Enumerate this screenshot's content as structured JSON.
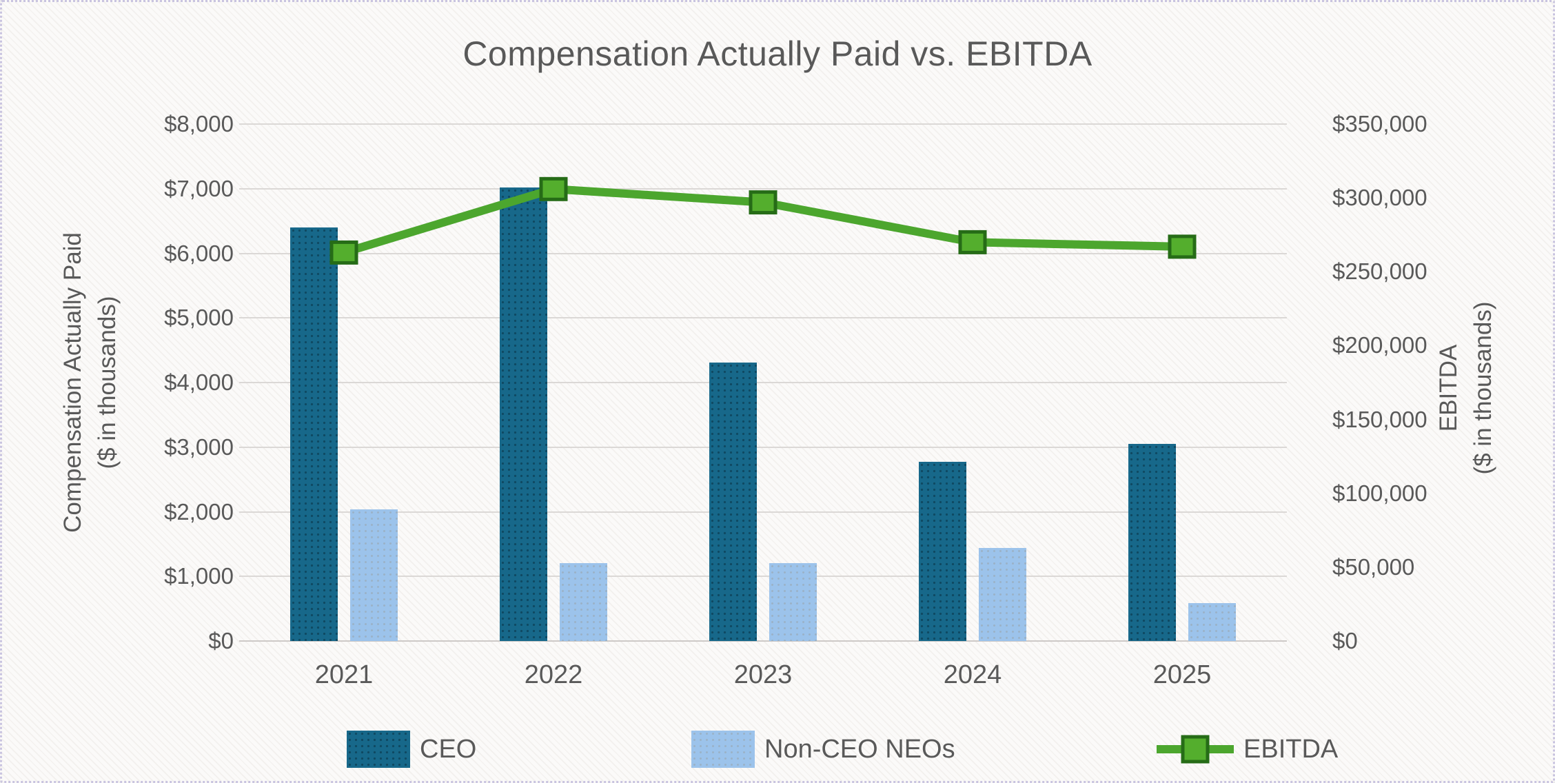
{
  "page": {
    "title": "Compensation Actually Paid vs. EBITDA"
  },
  "chart_data": {
    "type": "bar",
    "subtype": "clustered-bar-with-secondary-axis-line",
    "title": "Compensation Actually Paid vs. EBITDA",
    "categories": [
      "2021",
      "2022",
      "2023",
      "2024",
      "2025"
    ],
    "series": [
      {
        "name": "CEO",
        "type": "bar",
        "axis": "left",
        "color": "#17688a",
        "values": [
          6400,
          7020,
          4310,
          2770,
          3050
        ]
      },
      {
        "name": "Non-CEO NEOs",
        "type": "bar",
        "axis": "left",
        "color": "#9cc3eb",
        "values": [
          2040,
          1210,
          1210,
          1440,
          590
        ]
      },
      {
        "name": "EBITDA",
        "type": "line",
        "axis": "right",
        "color": "#4ca62e",
        "marker_fill": "#54ae2d",
        "marker_border": "#266c17",
        "values": [
          263000,
          306000,
          297000,
          270000,
          267000
        ]
      }
    ],
    "left_axis": {
      "title_line1": "Compensation Actually Paid",
      "title_line2": "($ in thousands)",
      "min": 0,
      "max": 8000,
      "step": 1000,
      "tick_labels": [
        "$0",
        "$1,000",
        "$2,000",
        "$3,000",
        "$4,000",
        "$5,000",
        "$6,000",
        "$7,000",
        "$8,000"
      ]
    },
    "right_axis": {
      "title_line1": "EBITDA",
      "title_line2": "($ in thousands)",
      "min": 0,
      "max": 350000,
      "step": 50000,
      "tick_labels": [
        "$0",
        "$50,000",
        "$100,000",
        "$150,000",
        "$200,000",
        "$250,000",
        "$300,000",
        "$350,000"
      ]
    },
    "legend": {
      "position": "bottom",
      "entries": [
        "CEO",
        "Non-CEO NEOs",
        "EBITDA"
      ]
    },
    "grid": "horizontal",
    "gridline_color": "#dbd8d6"
  }
}
